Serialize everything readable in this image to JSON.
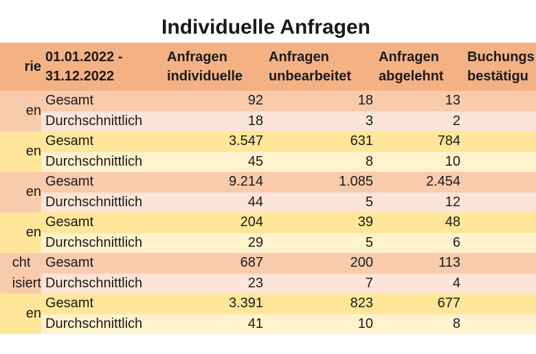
{
  "title": "Individuelle Anfragen",
  "header": {
    "category": "rie",
    "period": "01.01.2022 -\n31.12.2022",
    "individual": "Anfragen\nindividuelle",
    "unprocessed": "Anfragen\nunbearbeitet",
    "rejected": "Anfragen\nabgelehnt",
    "booking": "Buchungs\nbestätigu"
  },
  "groups": [
    {
      "category": "en",
      "theme": "orange",
      "rows": [
        {
          "label": "Gesamt",
          "individual": "92",
          "unprocessed": "18",
          "rejected": "13"
        },
        {
          "label": "Durchschnittlich",
          "individual": "18",
          "unprocessed": "3",
          "rejected": "2"
        }
      ]
    },
    {
      "category": "en",
      "theme": "yellow",
      "rows": [
        {
          "label": "Gesamt",
          "individual": "3.547",
          "unprocessed": "631",
          "rejected": "784"
        },
        {
          "label": "Durchschnittlich",
          "individual": "45",
          "unprocessed": "8",
          "rejected": "10"
        }
      ]
    },
    {
      "category": "en",
      "theme": "orange",
      "rows": [
        {
          "label": "Gesamt",
          "individual": "9.214",
          "unprocessed": "1.085",
          "rejected": "2.454"
        },
        {
          "label": "Durchschnittlich",
          "individual": "44",
          "unprocessed": "5",
          "rejected": "12"
        }
      ]
    },
    {
      "category": "en",
      "theme": "yellow",
      "rows": [
        {
          "label": "Gesamt",
          "individual": "204",
          "unprocessed": "39",
          "rejected": "48"
        },
        {
          "label": "Durchschnittlich",
          "individual": "29",
          "unprocessed": "5",
          "rejected": "6"
        }
      ]
    },
    {
      "category": "cht\nisiert",
      "theme": "orange",
      "rows": [
        {
          "label": "Gesamt",
          "individual": "687",
          "unprocessed": "200",
          "rejected": "113"
        },
        {
          "label": "Durchschnittlich",
          "individual": "23",
          "unprocessed": "7",
          "rejected": "4"
        }
      ]
    },
    {
      "category": "en",
      "theme": "yellow",
      "rows": [
        {
          "label": "Gesamt",
          "individual": "3.391",
          "unprocessed": "823",
          "rejected": "677"
        },
        {
          "label": "Durchschnittlich",
          "individual": "41",
          "unprocessed": "10",
          "rejected": "8"
        }
      ]
    }
  ],
  "colors": {
    "header": "#f4b183",
    "orange_dark": "#f8cbad",
    "orange_light": "#fce4d6",
    "yellow_dark": "#ffe699",
    "yellow_light": "#fff2cc"
  }
}
